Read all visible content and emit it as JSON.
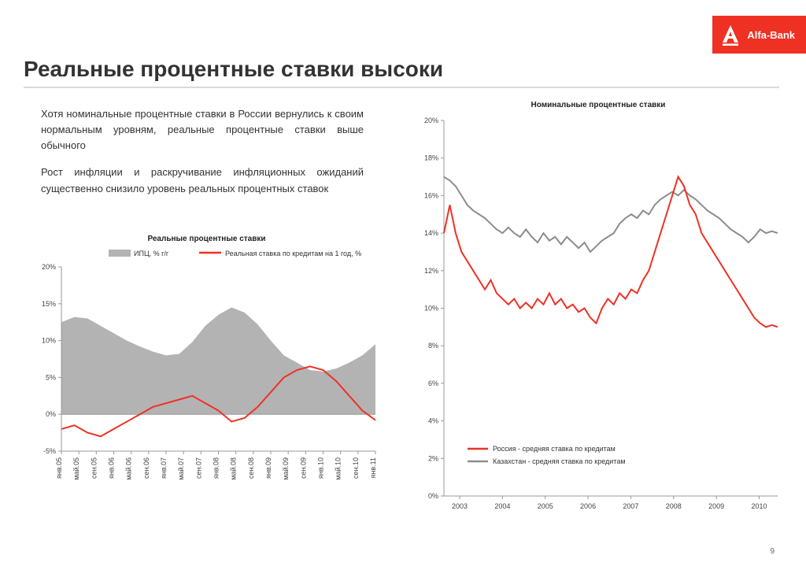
{
  "brand": {
    "name": "Alfa-Bank",
    "bg_color": "#ef3124",
    "text_color": "#ffffff"
  },
  "title": "Реальные процентные ставки высоки",
  "paragraphs": [
    "Хотя номинальные процентные ставки в России вернулись к своим нормальным уровням, реальные процентные ставки выше обычного",
    "Рост инфляции и раскручивание инфляционных ожиданий существенно снизило уровень реальных процентных ставок"
  ],
  "page_number": "9",
  "chart_left": {
    "type": "line+area",
    "title": "Реальные процентные ставки",
    "ylim": [
      -5,
      20
    ],
    "ytick_step": 5,
    "y_suffix": "%",
    "background": "#ffffff",
    "grid": false,
    "axis_color": "#999999",
    "x_labels": [
      "янв.05",
      "май.05",
      "сен.05",
      "янв.06",
      "май.06",
      "сен.06",
      "янв.07",
      "май.07",
      "сен.07",
      "янв.08",
      "май.08",
      "сен.08",
      "янв.09",
      "май.09",
      "сен.09",
      "янв.10",
      "май.10",
      "сен.10",
      "янв.11"
    ],
    "series_area": {
      "label": "ИПЦ, % г/г",
      "color": "#b3b3b3",
      "data": [
        12.5,
        13.2,
        13.0,
        12.0,
        11.0,
        10.0,
        9.2,
        8.5,
        8.0,
        8.2,
        9.8,
        12.0,
        13.5,
        14.5,
        13.8,
        12.2,
        10.0,
        8.0,
        7.0,
        6.0,
        5.8,
        6.2,
        7.0,
        8.0,
        9.5
      ]
    },
    "series_line": {
      "label": "Реальная ставка по кредитам на 1 год, %",
      "color": "#ef3124",
      "width": 2,
      "data": [
        -2.0,
        -1.5,
        -2.5,
        -3.0,
        -2.0,
        -1.0,
        0.0,
        1.0,
        1.5,
        2.0,
        2.5,
        1.5,
        0.5,
        -1.0,
        -0.5,
        1.0,
        3.0,
        5.0,
        6.0,
        6.5,
        6.0,
        4.5,
        2.5,
        0.5,
        -0.8
      ]
    }
  },
  "chart_right": {
    "type": "line",
    "title": "Номинальные процентные ставки",
    "ylim": [
      0,
      20
    ],
    "ytick_step": 2,
    "y_suffix": "%",
    "background": "#ffffff",
    "grid": false,
    "axis_color": "#999999",
    "x_labels": [
      "2003",
      "2004",
      "2005",
      "2006",
      "2007",
      "2008",
      "2009",
      "2010"
    ],
    "series": [
      {
        "label": "Россия - средняя ставка по кредитам",
        "color": "#ef3124",
        "width": 2,
        "data": [
          14.0,
          15.5,
          14.0,
          13.0,
          12.5,
          12.0,
          11.5,
          11.0,
          11.5,
          10.8,
          10.5,
          10.2,
          10.5,
          10.0,
          10.3,
          10.0,
          10.5,
          10.2,
          10.8,
          10.2,
          10.5,
          10.0,
          10.2,
          9.8,
          10.0,
          9.5,
          9.2,
          10.0,
          10.5,
          10.2,
          10.8,
          10.5,
          11.0,
          10.8,
          11.5,
          12.0,
          13.0,
          14.0,
          15.0,
          16.0,
          17.0,
          16.5,
          15.5,
          15.0,
          14.0,
          13.5,
          13.0,
          12.5,
          12.0,
          11.5,
          11.0,
          10.5,
          10.0,
          9.5,
          9.2,
          9.0,
          9.1,
          9.0
        ]
      },
      {
        "label": "Казахстан - средняя ставка по кредитам",
        "color": "#8c8c8c",
        "width": 2,
        "data": [
          17.0,
          16.8,
          16.5,
          16.0,
          15.5,
          15.2,
          15.0,
          14.8,
          14.5,
          14.2,
          14.0,
          14.3,
          14.0,
          13.8,
          14.2,
          13.8,
          13.5,
          14.0,
          13.6,
          13.8,
          13.4,
          13.8,
          13.5,
          13.2,
          13.5,
          13.0,
          13.3,
          13.6,
          13.8,
          14.0,
          14.5,
          14.8,
          15.0,
          14.8,
          15.2,
          15.0,
          15.5,
          15.8,
          16.0,
          16.2,
          16.0,
          16.3,
          16.0,
          15.8,
          15.5,
          15.2,
          15.0,
          14.8,
          14.5,
          14.2,
          14.0,
          13.8,
          13.5,
          13.8,
          14.2,
          14.0,
          14.1,
          14.0
        ]
      }
    ]
  }
}
